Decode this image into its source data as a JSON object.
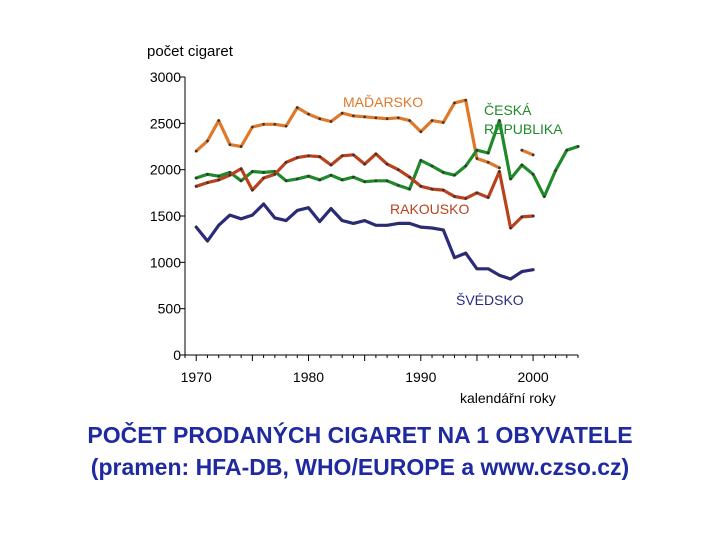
{
  "chart_data": {
    "type": "line",
    "ylabel": "počet cigaret",
    "xlabel": "kalendářní roky",
    "ylim": [
      0,
      3000
    ],
    "xlim": [
      1969,
      2004
    ],
    "yticks": [
      0,
      500,
      1000,
      1500,
      2000,
      2500,
      3000
    ],
    "xticks": [
      1970,
      1980,
      1990,
      2000
    ],
    "grid": false,
    "series": [
      {
        "name": "MAĎARSKO",
        "color": "#e0782a",
        "x": [
          1970,
          1971,
          1972,
          1973,
          1974,
          1975,
          1976,
          1977,
          1978,
          1979,
          1980,
          1981,
          1982,
          1983,
          1984,
          1985,
          1986,
          1987,
          1988,
          1989,
          1990,
          1991,
          1992,
          1993,
          1994,
          1995,
          1996,
          1997,
          1998,
          1999,
          2000
        ],
        "y": [
          2200,
          2310,
          2530,
          2270,
          2250,
          2460,
          2490,
          2490,
          2470,
          2670,
          2600,
          2550,
          2520,
          2610,
          2580,
          2570,
          2560,
          2550,
          2560,
          2530,
          2410,
          2530,
          2510,
          2720,
          2750,
          2120,
          2080,
          2020,
          null,
          2210,
          2160
        ]
      },
      {
        "name": "ČESKÁ REPUBLIKA",
        "color": "#1f8a2a",
        "x": [
          1970,
          1971,
          1972,
          1973,
          1974,
          1975,
          1976,
          1977,
          1978,
          1979,
          1980,
          1981,
          1982,
          1983,
          1984,
          1985,
          1986,
          1987,
          1988,
          1989,
          1990,
          1991,
          1992,
          1993,
          1994,
          1995,
          1996,
          1997,
          1998,
          1999,
          2000,
          2001,
          2002,
          2003,
          2004
        ],
        "y": [
          1910,
          1950,
          1930,
          1970,
          1880,
          1980,
          1970,
          1980,
          1880,
          1900,
          1930,
          1890,
          1940,
          1890,
          1920,
          1870,
          1880,
          1880,
          1830,
          1790,
          2100,
          2040,
          1970,
          1940,
          2040,
          2210,
          2180,
          2530,
          1900,
          2050,
          1950,
          1710,
          1990,
          2210,
          2250
        ]
      },
      {
        "name": "RAKOUSKO",
        "color": "#b8421e",
        "x": [
          1970,
          1971,
          1972,
          1973,
          1974,
          1975,
          1976,
          1977,
          1978,
          1979,
          1980,
          1981,
          1982,
          1983,
          1984,
          1985,
          1986,
          1987,
          1988,
          1989,
          1990,
          1991,
          1992,
          1993,
          1994,
          1995,
          1996,
          1997,
          1998,
          1999,
          2000
        ],
        "y": [
          1820,
          1860,
          1890,
          1940,
          2010,
          1780,
          1910,
          1950,
          2080,
          2130,
          2150,
          2140,
          2050,
          2150,
          2160,
          2060,
          2170,
          2060,
          2000,
          1920,
          1820,
          1790,
          1780,
          1710,
          1690,
          1750,
          1700,
          1980,
          1370,
          1490,
          1500
        ]
      },
      {
        "name": "ŠVÉDSKO",
        "color": "#2a2a7e",
        "x": [
          1970,
          1971,
          1972,
          1973,
          1974,
          1975,
          1976,
          1977,
          1978,
          1979,
          1980,
          1981,
          1982,
          1983,
          1984,
          1985,
          1986,
          1987,
          1988,
          1989,
          1990,
          1991,
          1992,
          1993,
          1994,
          1995,
          1996,
          1997,
          1998,
          1999,
          2000
        ],
        "y": [
          1380,
          1230,
          1400,
          1510,
          1470,
          1510,
          1630,
          1480,
          1450,
          1560,
          1590,
          1440,
          1580,
          1450,
          1420,
          1450,
          1400,
          1400,
          1420,
          1420,
          1380,
          1370,
          1350,
          1050,
          1100,
          930,
          930,
          860,
          820,
          900,
          920
        ]
      }
    ],
    "annotations": [
      {
        "text": "MAĎARSKO",
        "series": "MAĎARSKO"
      },
      {
        "text": "ČESKÁ",
        "series": "ČESKÁ REPUBLIKA"
      },
      {
        "text": "REPUBLIKA",
        "series": "ČESKÁ REPUBLIKA"
      },
      {
        "text": "RAKOUSKO",
        "series": "RAKOUSKO"
      },
      {
        "text": "ŠVÉDSKO",
        "series": "ŠVÉDSKO"
      }
    ]
  },
  "caption": {
    "line1": "POČET PRODANÝCH CIGARET NA 1 OBYVATELE",
    "line2": "(pramen: HFA-DB, WHO/EUROPE a www.czso.cz)"
  }
}
